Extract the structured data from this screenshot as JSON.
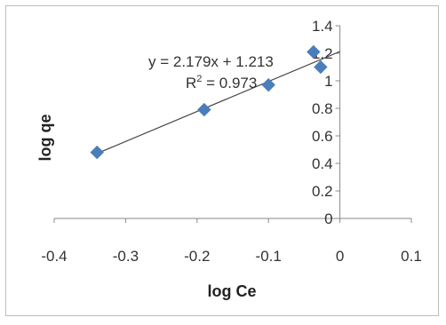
{
  "chart_data": {
    "type": "scatter",
    "title": "",
    "xlabel": "log Ce",
    "ylabel": "log qe",
    "xlim": [
      -0.4,
      0.1
    ],
    "ylim": [
      0,
      1.4
    ],
    "x_ticks": [
      -0.4,
      -0.3,
      -0.2,
      -0.1,
      0,
      0.1
    ],
    "x_tick_labels": [
      "-0.4",
      "-0.3",
      "-0.2",
      "-0.1",
      "0",
      "0.1"
    ],
    "y_ticks": [
      0,
      0.2,
      0.4,
      0.6,
      0.8,
      1,
      1.2,
      1.4
    ],
    "y_tick_labels": [
      "0",
      "0.2",
      "0.4",
      "0.6",
      "0.8",
      "1",
      "1.2",
      "1.4"
    ],
    "grid": false,
    "legend": "none",
    "series": [
      {
        "marker": "diamond",
        "color": "#4a7ebb",
        "points": [
          {
            "x": -0.34,
            "y": 0.48
          },
          {
            "x": -0.19,
            "y": 0.79
          },
          {
            "x": -0.1,
            "y": 0.97
          },
          {
            "x": -0.037,
            "y": 1.21
          },
          {
            "x": -0.027,
            "y": 1.1
          }
        ]
      }
    ],
    "trendline": {
      "type": "linear",
      "slope": 2.179,
      "intercept": 1.213,
      "x_range": [
        -0.34,
        0
      ],
      "color": "#444444"
    },
    "annotations": {
      "equation": "y = 2.179x + 1.213",
      "r2_prefix": "R",
      "r2_sup": "2",
      "r2_value": " = 0.973"
    }
  }
}
